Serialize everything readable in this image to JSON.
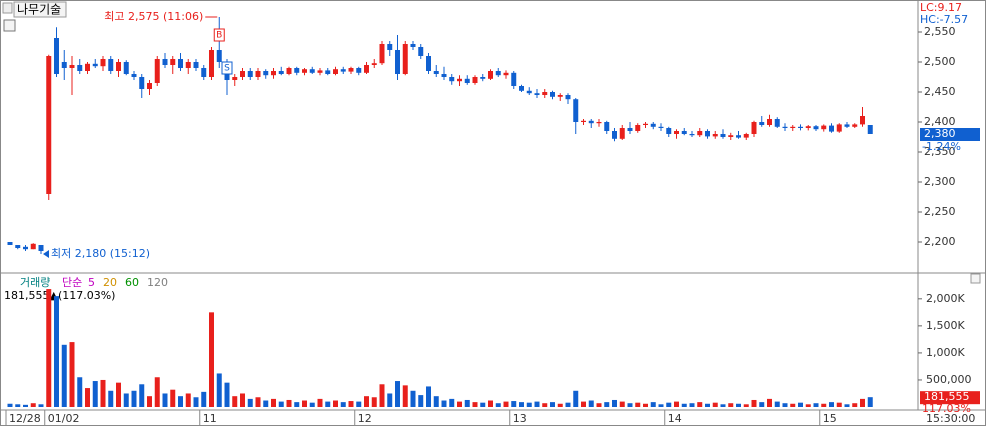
{
  "header": {
    "stock": "나무기술",
    "lc": "LC:9.17",
    "hc": "HC:-7.57"
  },
  "chart_data": [
    {
      "type": "candlestick",
      "up_color": "#e8201c",
      "down_color": "#1060d0",
      "ohlc": [
        [
          2200,
          2200,
          2195,
          2195
        ],
        [
          2195,
          2195,
          2188,
          2190
        ],
        [
          2192,
          2195,
          2185,
          2188
        ],
        [
          2188,
          2198,
          2188,
          2197
        ],
        [
          2195,
          2195,
          2180,
          2185
        ],
        [
          2280,
          2512,
          2270,
          2510
        ],
        [
          2540,
          2558,
          2475,
          2480
        ],
        [
          2500,
          2520,
          2470,
          2490
        ],
        [
          2490,
          2510,
          2445,
          2495
        ],
        [
          2495,
          2505,
          2480,
          2485
        ],
        [
          2485,
          2500,
          2480,
          2497
        ],
        [
          2497,
          2505,
          2490,
          2493
        ],
        [
          2493,
          2510,
          2485,
          2505
        ],
        [
          2505,
          2510,
          2480,
          2485
        ],
        [
          2485,
          2505,
          2475,
          2500
        ],
        [
          2500,
          2503,
          2478,
          2480
        ],
        [
          2480,
          2485,
          2470,
          2475
        ],
        [
          2475,
          2480,
          2440,
          2455
        ],
        [
          2455,
          2470,
          2445,
          2465
        ],
        [
          2465,
          2510,
          2460,
          2505
        ],
        [
          2505,
          2515,
          2490,
          2495
        ],
        [
          2495,
          2510,
          2480,
          2505
        ],
        [
          2505,
          2515,
          2485,
          2490
        ],
        [
          2490,
          2505,
          2480,
          2500
        ],
        [
          2500,
          2505,
          2485,
          2490
        ],
        [
          2490,
          2495,
          2470,
          2475
        ],
        [
          2475,
          2525,
          2470,
          2520
        ],
        [
          2520,
          2575,
          2490,
          2500
        ],
        [
          2500,
          2505,
          2445,
          2470
        ],
        [
          2470,
          2480,
          2460,
          2475
        ],
        [
          2475,
          2490,
          2470,
          2485
        ],
        [
          2485,
          2490,
          2470,
          2475
        ],
        [
          2475,
          2490,
          2470,
          2485
        ],
        [
          2485,
          2488,
          2472,
          2478
        ],
        [
          2478,
          2490,
          2472,
          2485
        ],
        [
          2485,
          2492,
          2478,
          2480
        ],
        [
          2480,
          2492,
          2478,
          2490
        ],
        [
          2490,
          2492,
          2478,
          2482
        ],
        [
          2482,
          2490,
          2478,
          2488
        ],
        [
          2488,
          2492,
          2480,
          2482
        ],
        [
          2482,
          2490,
          2478,
          2486
        ],
        [
          2486,
          2490,
          2478,
          2480
        ],
        [
          2480,
          2492,
          2478,
          2488
        ],
        [
          2488,
          2492,
          2480,
          2484
        ],
        [
          2484,
          2492,
          2480,
          2490
        ],
        [
          2490,
          2492,
          2478,
          2482
        ],
        [
          2482,
          2500,
          2480,
          2495
        ],
        [
          2495,
          2505,
          2490,
          2498
        ],
        [
          2498,
          2535,
          2495,
          2530
        ],
        [
          2530,
          2535,
          2510,
          2520
        ],
        [
          2520,
          2545,
          2470,
          2480
        ],
        [
          2480,
          2535,
          2478,
          2530
        ],
        [
          2530,
          2535,
          2520,
          2525
        ],
        [
          2525,
          2530,
          2505,
          2510
        ],
        [
          2510,
          2515,
          2480,
          2485
        ],
        [
          2485,
          2495,
          2475,
          2480
        ],
        [
          2480,
          2492,
          2470,
          2475
        ],
        [
          2475,
          2480,
          2462,
          2468
        ],
        [
          2468,
          2478,
          2460,
          2472
        ],
        [
          2472,
          2478,
          2462,
          2465
        ],
        [
          2465,
          2478,
          2462,
          2475
        ],
        [
          2475,
          2480,
          2468,
          2472
        ],
        [
          2472,
          2488,
          2470,
          2485
        ],
        [
          2485,
          2490,
          2475,
          2478
        ],
        [
          2478,
          2486,
          2472,
          2482
        ],
        [
          2482,
          2485,
          2455,
          2460
        ],
        [
          2460,
          2462,
          2450,
          2452
        ],
        [
          2452,
          2458,
          2445,
          2448
        ],
        [
          2448,
          2455,
          2440,
          2445
        ],
        [
          2445,
          2455,
          2440,
          2450
        ],
        [
          2450,
          2452,
          2438,
          2442
        ],
        [
          2442,
          2448,
          2435,
          2445
        ],
        [
          2445,
          2448,
          2430,
          2438
        ],
        [
          2438,
          2440,
          2380,
          2400
        ],
        [
          2400,
          2405,
          2395,
          2402
        ],
        [
          2402,
          2405,
          2390,
          2398
        ],
        [
          2398,
          2405,
          2392,
          2400
        ],
        [
          2400,
          2402,
          2380,
          2385
        ],
        [
          2385,
          2390,
          2368,
          2372
        ],
        [
          2372,
          2395,
          2370,
          2390
        ],
        [
          2390,
          2400,
          2380,
          2385
        ],
        [
          2385,
          2398,
          2382,
          2395
        ],
        [
          2395,
          2400,
          2390,
          2397
        ],
        [
          2397,
          2400,
          2388,
          2392
        ],
        [
          2392,
          2398,
          2385,
          2390
        ],
        [
          2390,
          2392,
          2375,
          2380
        ],
        [
          2380,
          2388,
          2372,
          2385
        ],
        [
          2385,
          2390,
          2378,
          2380
        ],
        [
          2380,
          2385,
          2375,
          2378
        ],
        [
          2378,
          2390,
          2375,
          2385
        ],
        [
          2385,
          2388,
          2372,
          2376
        ],
        [
          2376,
          2385,
          2372,
          2380
        ],
        [
          2380,
          2388,
          2372,
          2375
        ],
        [
          2375,
          2382,
          2370,
          2378
        ],
        [
          2378,
          2385,
          2372,
          2374
        ],
        [
          2374,
          2382,
          2370,
          2380
        ],
        [
          2380,
          2402,
          2375,
          2400
        ],
        [
          2400,
          2410,
          2392,
          2395
        ],
        [
          2395,
          2412,
          2392,
          2405
        ],
        [
          2405,
          2408,
          2390,
          2392
        ],
        [
          2392,
          2398,
          2385,
          2390
        ],
        [
          2390,
          2395,
          2385,
          2392
        ],
        [
          2392,
          2396,
          2386,
          2390
        ],
        [
          2390,
          2395,
          2386,
          2393
        ],
        [
          2393,
          2395,
          2385,
          2388
        ],
        [
          2388,
          2396,
          2384,
          2394
        ],
        [
          2394,
          2398,
          2382,
          2384
        ],
        [
          2384,
          2398,
          2382,
          2396
        ],
        [
          2396,
          2400,
          2390,
          2392
        ],
        [
          2392,
          2398,
          2390,
          2396
        ],
        [
          2396,
          2425,
          2392,
          2410
        ],
        [
          2395,
          2395,
          2380,
          2380
        ]
      ],
      "ylim": [
        2150,
        2595
      ],
      "yticks": [
        {
          "value": 2200,
          "label": "2,200"
        },
        {
          "value": 2250,
          "label": "2,250"
        },
        {
          "value": 2300,
          "label": "2,300"
        },
        {
          "value": 2350,
          "label": "2,350"
        },
        {
          "value": 2400,
          "label": "2,400"
        },
        {
          "value": 2450,
          "label": "2,450"
        },
        {
          "value": 2500,
          "label": "2,500"
        },
        {
          "value": 2550,
          "label": "2,550"
        }
      ],
      "high": {
        "label": "최고 2,575 (11:06)",
        "index": 27,
        "value": 2575
      },
      "low": {
        "label": "최저 2,180 (15:12)",
        "index": 4,
        "value": 2180
      },
      "signals": [
        {
          "label": "B",
          "index": 27,
          "value": 2545
        },
        {
          "label": "S",
          "index": 28,
          "value": 2490
        }
      ],
      "last_price": {
        "value": 2380,
        "label": "2,380",
        "change": "-1.24%"
      }
    },
    {
      "type": "bar",
      "title": "거래량",
      "ma_label": "단순",
      "up_color": "#e8201c",
      "down_color": "#1060d0",
      "ma": [
        {
          "name": "5",
          "color": "#c000c0"
        },
        {
          "name": "20",
          "color": "#d09000"
        },
        {
          "name": "60",
          "color": "#009000"
        },
        {
          "name": "120",
          "color": "#808080"
        }
      ],
      "values": [
        60000,
        50000,
        40000,
        70000,
        50000,
        2180000,
        2050000,
        1150000,
        1200000,
        550000,
        350000,
        480000,
        500000,
        300000,
        450000,
        250000,
        300000,
        420000,
        200000,
        550000,
        250000,
        320000,
        200000,
        250000,
        180000,
        280000,
        1750000,
        620000,
        450000,
        200000,
        250000,
        150000,
        180000,
        120000,
        150000,
        100000,
        130000,
        90000,
        120000,
        80000,
        150000,
        100000,
        120000,
        90000,
        110000,
        100000,
        200000,
        180000,
        420000,
        250000,
        480000,
        400000,
        300000,
        220000,
        380000,
        200000,
        120000,
        150000,
        100000,
        130000,
        90000,
        80000,
        120000,
        70000,
        100000,
        110000,
        90000,
        80000,
        100000,
        70000,
        90000,
        60000,
        80000,
        300000,
        100000,
        120000,
        70000,
        90000,
        130000,
        100000,
        70000,
        80000,
        60000,
        90000,
        50000,
        80000,
        100000,
        60000,
        70000,
        90000,
        60000,
        80000,
        50000,
        70000,
        60000,
        50000,
        130000,
        90000,
        150000,
        100000,
        70000,
        60000,
        80000,
        50000,
        70000,
        60000,
        90000,
        80000,
        50000,
        70000,
        150000,
        181555
      ],
      "ylim": [
        0,
        2200000
      ],
      "yticks": [
        {
          "value": 500000,
          "label": "500,000"
        },
        {
          "value": 1000000,
          "label": "1,000K"
        },
        {
          "value": 1500000,
          "label": "1,500K"
        },
        {
          "value": 2000000,
          "label": "2,000K"
        }
      ],
      "last": {
        "value": 181555,
        "label": "181,555",
        "change": "117.03%",
        "summary": "181,555▲(117.03%)"
      },
      "xticks": [
        {
          "value": 0,
          "label": "12/28"
        },
        {
          "value": 5,
          "label": "01/02"
        },
        {
          "value": 25,
          "label": "11"
        },
        {
          "value": 45,
          "label": "12"
        },
        {
          "value": 65,
          "label": "13"
        },
        {
          "value": 85,
          "label": "14"
        },
        {
          "value": 105,
          "label": "15"
        }
      ],
      "time": "15:30:00"
    }
  ]
}
